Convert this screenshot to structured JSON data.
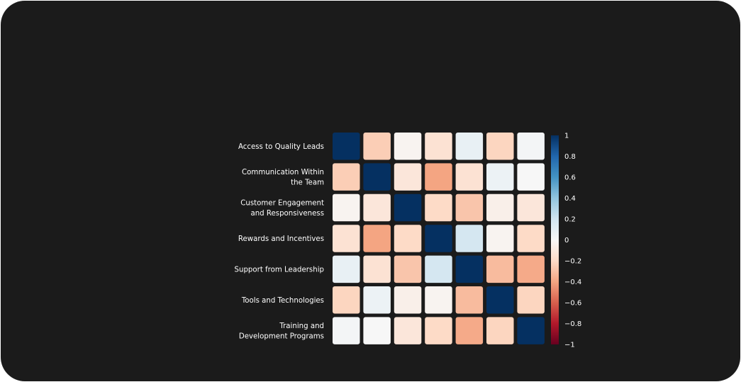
{
  "chart_data": {
    "type": "heatmap",
    "title": "",
    "variables": [
      "Access to Quality Leads",
      "Communication Within the Team",
      "Customer Engagement & Responsiveness",
      "Rewards and Incentives",
      "Support from Leadership",
      "Tools and Technologies",
      "Training and Development Programs"
    ],
    "row_labels": [
      [
        "Access to Quality Leads"
      ],
      [
        "Communication Within",
        "the Team"
      ],
      [
        "Customer Engagement",
        "and Responsiveness"
      ],
      [
        "Rewards and Incentives"
      ],
      [
        "Support from Leadership"
      ],
      [
        "Tools and Technologies"
      ],
      [
        "Training and",
        "Development Programs"
      ]
    ],
    "column_labels": [
      [
        "Access to Quality Leads"
      ],
      [
        "Communication Within",
        "the Team"
      ],
      [
        "Customer Engagement &",
        "Responsiveness"
      ],
      [
        "Rewards and Incentives"
      ],
      [
        "Support from Leadership"
      ],
      [
        "Tools and Technologies"
      ],
      [
        "Training and Development",
        "Programs"
      ]
    ],
    "matrix": [
      [
        1.0,
        -0.25,
        -0.03,
        -0.15,
        0.08,
        -0.22,
        0.02
      ],
      [
        -0.25,
        1.0,
        -0.12,
        -0.4,
        -0.15,
        0.06,
        0.0
      ],
      [
        -0.03,
        -0.12,
        1.0,
        -0.2,
        -0.28,
        -0.06,
        -0.12
      ],
      [
        -0.15,
        -0.4,
        -0.2,
        1.0,
        0.18,
        -0.03,
        -0.2
      ],
      [
        0.08,
        -0.15,
        -0.28,
        0.18,
        1.0,
        -0.32,
        -0.38
      ],
      [
        -0.22,
        0.06,
        -0.06,
        -0.03,
        -0.32,
        1.0,
        -0.22
      ],
      [
        0.02,
        0.0,
        -0.12,
        -0.2,
        -0.38,
        -0.22,
        1.0
      ]
    ],
    "colorbar": {
      "range": [
        -1,
        1
      ],
      "ticks": [
        "1",
        "0.8",
        "0.6",
        "0.4",
        "0.2",
        "0",
        "−0.2",
        "−0.4",
        "−0.6",
        "−0.8",
        "−1"
      ],
      "colorscale": "RdBu"
    },
    "colors": {
      "background": "#1b1b1b",
      "text": "#ffffff"
    }
  }
}
